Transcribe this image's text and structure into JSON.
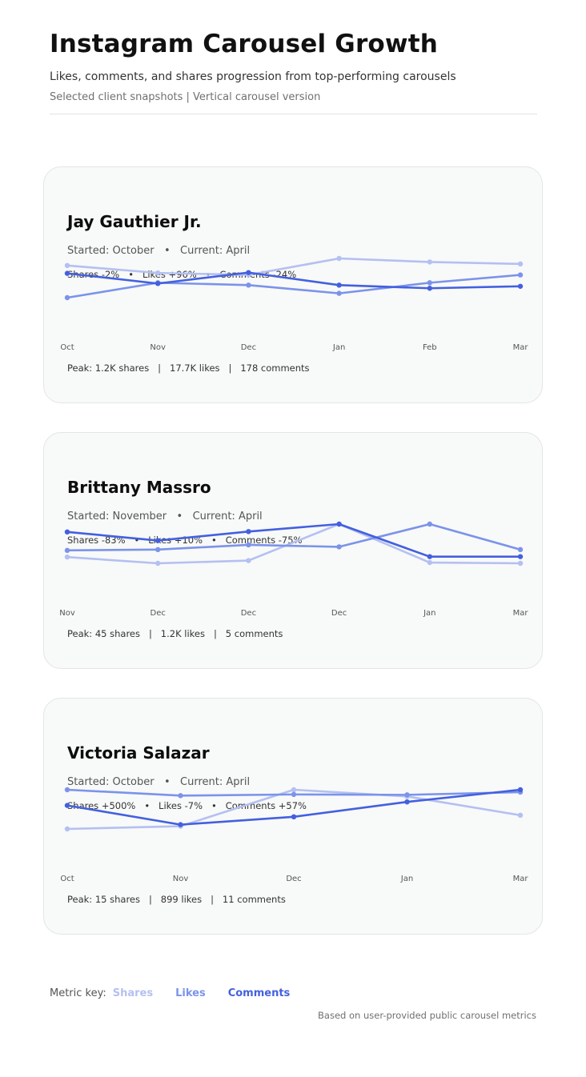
{
  "title": "Instagram Carousel Growth",
  "subtitle": "Likes, comments, and shares progression from top-performing carousels",
  "note": "Selected client snapshots | Vertical carousel version",
  "colors": {
    "shares": "#b4c0f1",
    "likes": "#7b93ea",
    "comments": "#4360de"
  },
  "legend": {
    "label": "Metric key:",
    "shares": "Shares",
    "likes": "Likes",
    "comments": "Comments"
  },
  "source": "Based on user-provided public carousel metrics",
  "cards": [
    {
      "name": "Jay Gauthier Jr.",
      "period": "Started: October   •   Current: April",
      "changes": "Shares -2%   •   Likes +96%   •   Comments -24%",
      "peak": "Peak: 1.2K shares   |   17.7K likes   |   178 comments"
    },
    {
      "name": "Brittany Massro",
      "period": "Started: November   •   Current: April",
      "changes": "Shares -83%   •   Likes +10%   •   Comments -75%",
      "peak": "Peak: 45 shares   |   1.2K likes   |   5 comments"
    },
    {
      "name": "Victoria Salazar",
      "period": "Started: October   •   Current: April",
      "changes": "Shares +500%   •   Likes -7%   •   Comments +57%",
      "peak": "Peak: 15 shares   |   899 likes   |   11 comments"
    }
  ],
  "chart_data": [
    {
      "type": "line",
      "categories": [
        "Oct",
        "Nov",
        "Dec",
        "Jan",
        "Feb",
        "Mar"
      ],
      "ylim": [
        0,
        1
      ],
      "series": [
        {
          "name": "Shares",
          "values": [
            0.82,
            0.63,
            0.58,
            1.0,
            0.91,
            0.86
          ]
        },
        {
          "name": "Likes",
          "values": [
            0.0,
            0.38,
            0.32,
            0.11,
            0.38,
            0.58
          ]
        },
        {
          "name": "Comments",
          "values": [
            0.62,
            0.36,
            0.64,
            0.32,
            0.24,
            0.29
          ]
        }
      ]
    },
    {
      "type": "line",
      "categories": [
        "Nov",
        "Dec",
        "Dec",
        "Dec",
        "Jan",
        "Mar"
      ],
      "ylim": [
        0,
        1
      ],
      "series": [
        {
          "name": "Shares",
          "values": [
            0.16,
            0.0,
            0.07,
            1.0,
            0.02,
            0.0
          ]
        },
        {
          "name": "Likes",
          "values": [
            0.33,
            0.35,
            0.47,
            0.42,
            1.0,
            0.35
          ]
        },
        {
          "name": "Comments",
          "values": [
            0.8,
            0.58,
            0.81,
            1.0,
            0.17,
            0.17
          ]
        }
      ]
    },
    {
      "type": "line",
      "categories": [
        "Oct",
        "Nov",
        "Dec",
        "Jan",
        "Mar"
      ],
      "ylim": [
        0,
        1
      ],
      "series": [
        {
          "name": "Shares",
          "values": [
            0.0,
            0.07,
            1.0,
            0.83,
            0.35
          ]
        },
        {
          "name": "Likes",
          "values": [
            1.0,
            0.85,
            0.88,
            0.87,
            0.94
          ]
        },
        {
          "name": "Comments",
          "values": [
            0.6,
            0.11,
            0.31,
            0.69,
            1.0
          ]
        }
      ]
    }
  ]
}
